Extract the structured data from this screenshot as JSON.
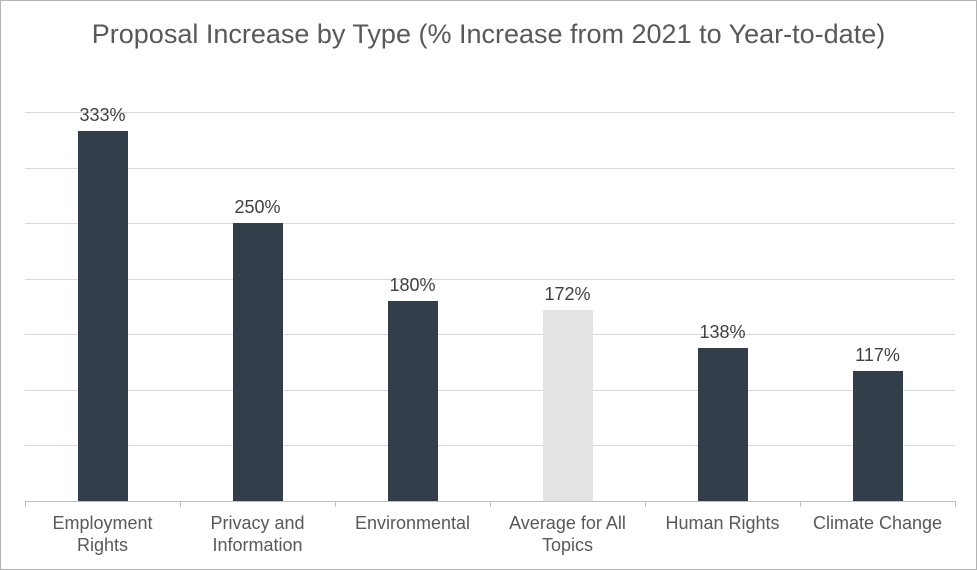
{
  "chart_data": {
    "type": "bar",
    "title": "Proposal Increase by Type (% Increase from 2021 to Year-to-date)",
    "categories": [
      "Employment Rights",
      "Privacy and Information",
      "Environmental",
      "Average for All Topics",
      "Human Rights",
      "Climate Change"
    ],
    "values": [
      333,
      250,
      180,
      172,
      138,
      117
    ],
    "data_labels": [
      "333%",
      "250%",
      "180%",
      "172%",
      "138%",
      "117%"
    ],
    "highlight_index": 3,
    "xlabel": "",
    "ylabel": "",
    "ylim": [
      0,
      350
    ],
    "gridline_step": 50,
    "grid": true,
    "legend_position": "none",
    "colors": {
      "bar": "#333e4b",
      "highlight_bar": "#e3e3e3",
      "gridline": "#d9d9d9",
      "axis_line": "#bfbfbf",
      "title_text": "#595959",
      "category_text": "#595959",
      "data_label_text": "#404040",
      "background": "#ffffff",
      "frame_border": "#b4b4b4"
    }
  }
}
